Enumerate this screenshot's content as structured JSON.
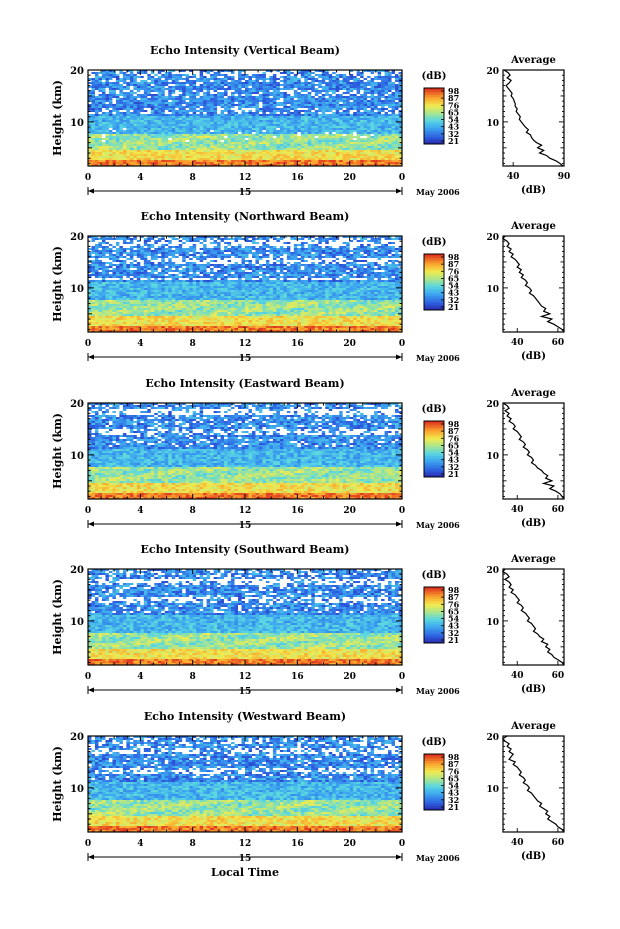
{
  "chart_data": [
    {
      "type": "heatmap",
      "title": "Echo Intensity (Vertical Beam)",
      "ylabel": "Height (km)",
      "x_ticks": [
        "0",
        "4",
        "8",
        "12",
        "16",
        "20",
        "0"
      ],
      "date_label": "15",
      "month_label": "May 2006",
      "ylim": [
        1.5,
        20
      ],
      "y_ticks": [
        "20",
        "10"
      ],
      "colorbar": {
        "unit": "(dB)",
        "ticks": [
          "98",
          "87",
          "76",
          "65",
          "54",
          "43",
          "32",
          "21"
        ]
      },
      "average": {
        "title": "Average",
        "xlabel": "(dB)",
        "x_ticks": [
          "40",
          "90"
        ],
        "xlim": [
          30,
          90
        ],
        "y_ticks": [
          "20",
          "10"
        ],
        "profile": [
          [
            31,
            20
          ],
          [
            35,
            19.5
          ],
          [
            37,
            19
          ],
          [
            34,
            18.5
          ],
          [
            38,
            18
          ],
          [
            36,
            17.5
          ],
          [
            33,
            17
          ],
          [
            35,
            16.5
          ],
          [
            37,
            16
          ],
          [
            39,
            15.5
          ],
          [
            38,
            15
          ],
          [
            40,
            14.5
          ],
          [
            41,
            14
          ],
          [
            42,
            13.5
          ],
          [
            42,
            13
          ],
          [
            44,
            12.5
          ],
          [
            43,
            12
          ],
          [
            45,
            11.5
          ],
          [
            47,
            11
          ],
          [
            46,
            10.5
          ],
          [
            48,
            10
          ],
          [
            50,
            9.5
          ],
          [
            52,
            9
          ],
          [
            55,
            8.5
          ],
          [
            53,
            8
          ],
          [
            57,
            7.5
          ],
          [
            58,
            7
          ],
          [
            60,
            6.5
          ],
          [
            63,
            6
          ],
          [
            68,
            5.5
          ],
          [
            64,
            5
          ],
          [
            70,
            4.5
          ],
          [
            66,
            4
          ],
          [
            73,
            3.5
          ],
          [
            76,
            3
          ],
          [
            82,
            2.5
          ],
          [
            86,
            2
          ],
          [
            89,
            1.5
          ]
        ]
      }
    },
    {
      "type": "heatmap",
      "title": "Echo Intensity (Northward Beam)",
      "ylabel": "Height (km)",
      "x_ticks": [
        "0",
        "4",
        "8",
        "12",
        "16",
        "20",
        "0"
      ],
      "date_label": "15",
      "month_label": "May 2006",
      "ylim": [
        1.5,
        20
      ],
      "y_ticks": [
        "20",
        "10"
      ],
      "colorbar": {
        "unit": "(dB)",
        "ticks": [
          "98",
          "87",
          "76",
          "65",
          "54",
          "43",
          "32",
          "21"
        ]
      },
      "average": {
        "title": "Average",
        "xlabel": "(dB)",
        "x_ticks": [
          "40",
          "60"
        ],
        "xlim": [
          33,
          63
        ],
        "y_ticks": [
          "20",
          "10"
        ],
        "profile": [
          [
            34,
            20
          ],
          [
            33,
            19.5
          ],
          [
            35,
            19
          ],
          [
            36,
            18.5
          ],
          [
            35,
            18
          ],
          [
            37,
            17.5
          ],
          [
            36,
            17
          ],
          [
            38,
            16.5
          ],
          [
            37,
            16
          ],
          [
            39,
            15.5
          ],
          [
            40,
            15
          ],
          [
            41,
            14.5
          ],
          [
            40,
            14
          ],
          [
            42,
            13.5
          ],
          [
            41,
            13
          ],
          [
            43,
            12.5
          ],
          [
            42,
            12
          ],
          [
            44,
            11.5
          ],
          [
            45,
            11
          ],
          [
            44,
            10.5
          ],
          [
            46,
            10
          ],
          [
            47,
            9.5
          ],
          [
            46,
            9
          ],
          [
            48,
            8.5
          ],
          [
            49,
            8
          ],
          [
            50,
            7.5
          ],
          [
            51,
            7
          ],
          [
            52,
            6.5
          ],
          [
            54,
            6
          ],
          [
            53,
            5.5
          ],
          [
            56,
            5
          ],
          [
            52,
            4.5
          ],
          [
            57,
            4
          ],
          [
            55,
            3.5
          ],
          [
            58,
            3
          ],
          [
            60,
            2.5
          ],
          [
            62,
            2
          ],
          [
            63,
            1.5
          ]
        ]
      }
    },
    {
      "type": "heatmap",
      "title": "Echo Intensity (Eastward Beam)",
      "ylabel": "Height (km)",
      "x_ticks": [
        "0",
        "4",
        "8",
        "12",
        "16",
        "20",
        "0"
      ],
      "date_label": "15",
      "month_label": "May 2006",
      "ylim": [
        1.5,
        20
      ],
      "y_ticks": [
        "20",
        "10"
      ],
      "colorbar": {
        "unit": "(dB)",
        "ticks": [
          "98",
          "87",
          "76",
          "65",
          "54",
          "43",
          "32",
          "21"
        ]
      },
      "average": {
        "title": "Average",
        "xlabel": "(dB)",
        "x_ticks": [
          "40",
          "60"
        ],
        "xlim": [
          33,
          63
        ],
        "y_ticks": [
          "20",
          "10"
        ],
        "profile": [
          [
            33,
            20
          ],
          [
            35,
            19.5
          ],
          [
            36,
            19
          ],
          [
            34,
            18.5
          ],
          [
            36,
            18
          ],
          [
            35,
            17.5
          ],
          [
            37,
            17
          ],
          [
            36,
            16.5
          ],
          [
            38,
            16
          ],
          [
            39,
            15.5
          ],
          [
            38,
            15
          ],
          [
            40,
            14.5
          ],
          [
            41,
            14
          ],
          [
            42,
            13.5
          ],
          [
            41,
            13
          ],
          [
            43,
            12.5
          ],
          [
            44,
            12
          ],
          [
            43,
            11.5
          ],
          [
            45,
            11
          ],
          [
            46,
            10.5
          ],
          [
            45,
            10
          ],
          [
            47,
            9.5
          ],
          [
            48,
            9
          ],
          [
            47,
            8.5
          ],
          [
            49,
            8
          ],
          [
            50,
            7.5
          ],
          [
            52,
            7
          ],
          [
            53,
            6.5
          ],
          [
            55,
            6
          ],
          [
            54,
            5.5
          ],
          [
            57,
            5
          ],
          [
            53,
            4.5
          ],
          [
            58,
            4
          ],
          [
            56,
            3.5
          ],
          [
            59,
            3
          ],
          [
            61,
            2.5
          ],
          [
            62,
            2
          ],
          [
            63,
            1.5
          ]
        ]
      }
    },
    {
      "type": "heatmap",
      "title": "Echo Intensity (Southward Beam)",
      "ylabel": "Height (km)",
      "x_ticks": [
        "0",
        "4",
        "8",
        "12",
        "16",
        "20",
        "0"
      ],
      "date_label": "15",
      "month_label": "May 2006",
      "ylim": [
        1.5,
        20
      ],
      "y_ticks": [
        "20",
        "10"
      ],
      "colorbar": {
        "unit": "(dB)",
        "ticks": [
          "98",
          "87",
          "76",
          "65",
          "54",
          "43",
          "32",
          "21"
        ]
      },
      "average": {
        "title": "Average",
        "xlabel": "(dB)",
        "x_ticks": [
          "40",
          "60"
        ],
        "xlim": [
          33,
          63
        ],
        "y_ticks": [
          "20",
          "10"
        ],
        "profile": [
          [
            34,
            20
          ],
          [
            33,
            19.5
          ],
          [
            35,
            19
          ],
          [
            36,
            18.5
          ],
          [
            34,
            18
          ],
          [
            36,
            17.5
          ],
          [
            37,
            17
          ],
          [
            36,
            16.5
          ],
          [
            38,
            16
          ],
          [
            37,
            15.5
          ],
          [
            39,
            15
          ],
          [
            40,
            14.5
          ],
          [
            41,
            14
          ],
          [
            40,
            13.5
          ],
          [
            42,
            13
          ],
          [
            43,
            12.5
          ],
          [
            42,
            12
          ],
          [
            44,
            11.5
          ],
          [
            45,
            11
          ],
          [
            46,
            10.5
          ],
          [
            45,
            10
          ],
          [
            47,
            9.5
          ],
          [
            48,
            9
          ],
          [
            49,
            8.5
          ],
          [
            48,
            8
          ],
          [
            50,
            7.5
          ],
          [
            51,
            7
          ],
          [
            53,
            6.5
          ],
          [
            52,
            6
          ],
          [
            55,
            5.5
          ],
          [
            54,
            5
          ],
          [
            56,
            4.5
          ],
          [
            55,
            4
          ],
          [
            57,
            3.5
          ],
          [
            58,
            3
          ],
          [
            60,
            2.5
          ],
          [
            62,
            2
          ],
          [
            63,
            1.5
          ]
        ]
      }
    },
    {
      "type": "heatmap",
      "title": "Echo Intensity (Westward Beam)",
      "ylabel": "Height (km)",
      "x_ticks": [
        "0",
        "4",
        "8",
        "12",
        "16",
        "20",
        "0"
      ],
      "date_label": "15",
      "month_label": "May 2006",
      "ylim": [
        1.5,
        20
      ],
      "y_ticks": [
        "20",
        "10"
      ],
      "xlabel": "Local Time",
      "colorbar": {
        "unit": "(dB)",
        "ticks": [
          "98",
          "87",
          "76",
          "65",
          "54",
          "43",
          "32",
          "21"
        ]
      },
      "average": {
        "title": "Average",
        "xlabel": "(dB)",
        "x_ticks": [
          "40",
          "60"
        ],
        "xlim": [
          33,
          63
        ],
        "y_ticks": [
          "20",
          "10"
        ],
        "profile": [
          [
            35,
            20
          ],
          [
            33,
            19.5
          ],
          [
            34,
            19
          ],
          [
            36,
            18.5
          ],
          [
            35,
            18
          ],
          [
            37,
            17.5
          ],
          [
            36,
            17
          ],
          [
            38,
            16.5
          ],
          [
            37,
            16
          ],
          [
            36,
            15.5
          ],
          [
            39,
            15
          ],
          [
            38,
            14.5
          ],
          [
            40,
            14
          ],
          [
            41,
            13.5
          ],
          [
            42,
            13
          ],
          [
            41,
            12.5
          ],
          [
            43,
            12
          ],
          [
            44,
            11.5
          ],
          [
            43,
            11
          ],
          [
            45,
            10.5
          ],
          [
            46,
            10
          ],
          [
            45,
            9.5
          ],
          [
            47,
            9
          ],
          [
            48,
            8.5
          ],
          [
            49,
            8
          ],
          [
            50,
            7.5
          ],
          [
            52,
            7
          ],
          [
            51,
            6.5
          ],
          [
            53,
            6
          ],
          [
            55,
            5.5
          ],
          [
            54,
            5
          ],
          [
            56,
            4.5
          ],
          [
            55,
            4
          ],
          [
            57,
            3.5
          ],
          [
            59,
            3
          ],
          [
            60,
            2.5
          ],
          [
            62,
            2
          ],
          [
            63,
            1.5
          ]
        ]
      }
    }
  ]
}
